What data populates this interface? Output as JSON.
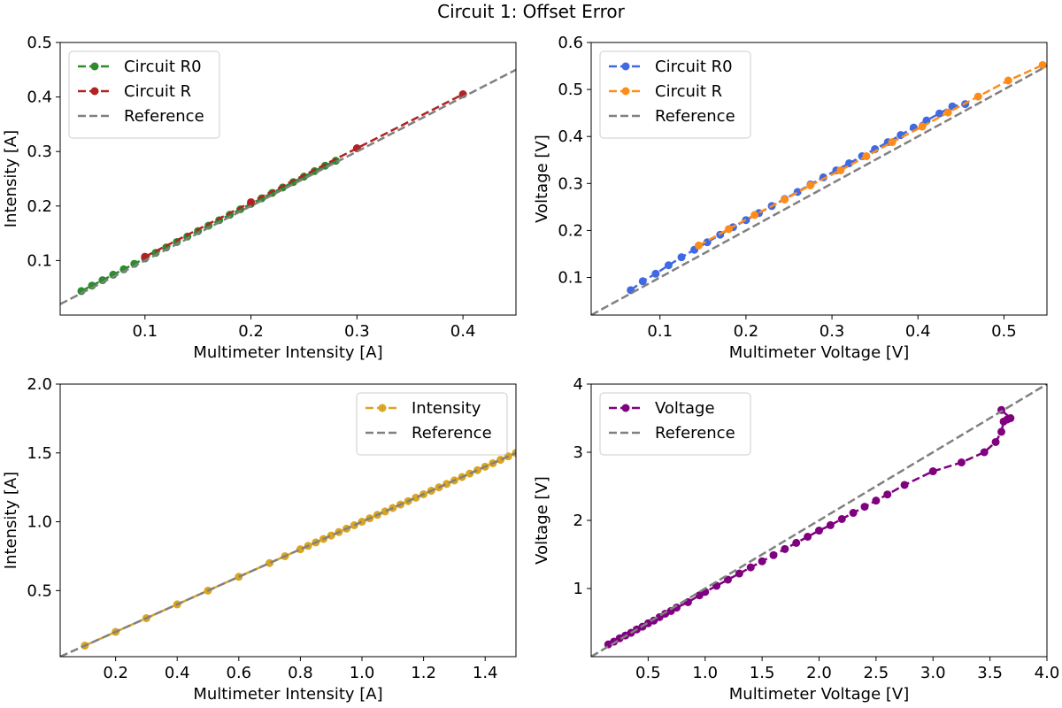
{
  "figure": {
    "title": "Circuit 1: Offset Error"
  },
  "chart_data": [
    {
      "type": "line",
      "xlabel": "Multimeter Intensity [A]",
      "ylabel": "Intensity [A]",
      "xlim": [
        0.02,
        0.45
      ],
      "ylim": [
        0.0,
        0.5
      ],
      "xticks": [
        0.1,
        0.2,
        0.3,
        0.4
      ],
      "xtick_labels": [
        "0.1",
        "0.2",
        "0.3",
        "0.4"
      ],
      "yticks": [
        0.1,
        0.2,
        0.3,
        0.4,
        0.5
      ],
      "ytick_labels": [
        "0.1",
        "0.2",
        "0.3",
        "0.4",
        "0.5"
      ],
      "legend_position": "top-left",
      "series": [
        {
          "name": "Circuit R0",
          "color": "#2e8b2e",
          "style": "dashed-markers",
          "x": [
            0.04,
            0.05,
            0.06,
            0.07,
            0.08,
            0.09,
            0.1,
            0.11,
            0.12,
            0.13,
            0.14,
            0.15,
            0.16,
            0.17,
            0.18,
            0.19,
            0.2,
            0.21,
            0.22,
            0.23,
            0.24,
            0.25,
            0.26,
            0.27,
            0.28
          ],
          "y": [
            0.044,
            0.054,
            0.064,
            0.074,
            0.084,
            0.094,
            0.104,
            0.114,
            0.124,
            0.134,
            0.144,
            0.154,
            0.164,
            0.174,
            0.184,
            0.194,
            0.204,
            0.214,
            0.224,
            0.234,
            0.244,
            0.254,
            0.264,
            0.274,
            0.283
          ]
        },
        {
          "name": "Circuit R",
          "color": "#b22222",
          "style": "dashed-markers",
          "x": [
            0.1,
            0.2,
            0.3,
            0.4
          ],
          "y": [
            0.107,
            0.207,
            0.306,
            0.405
          ]
        },
        {
          "name": "Reference",
          "color": "#808080",
          "style": "dashed",
          "x": [
            0.02,
            0.45
          ],
          "y": [
            0.02,
            0.45
          ]
        }
      ]
    },
    {
      "type": "line",
      "xlabel": "Multimeter Voltage [V]",
      "ylabel": "Voltage [V]",
      "xlim": [
        0.02,
        0.55
      ],
      "ylim": [
        0.02,
        0.6
      ],
      "xticks": [
        0.1,
        0.2,
        0.3,
        0.4,
        0.5
      ],
      "xtick_labels": [
        "0.1",
        "0.2",
        "0.3",
        "0.4",
        "0.5"
      ],
      "yticks": [
        0.1,
        0.2,
        0.3,
        0.4,
        0.5,
        0.6
      ],
      "ytick_labels": [
        "0.1",
        "0.2",
        "0.3",
        "0.4",
        "0.5",
        "0.6"
      ],
      "legend_position": "top-left",
      "series": [
        {
          "name": "Circuit R0",
          "color": "#4169e1",
          "style": "dashed-markers",
          "x": [
            0.066,
            0.08,
            0.095,
            0.11,
            0.125,
            0.14,
            0.155,
            0.17,
            0.185,
            0.2,
            0.215,
            0.23,
            0.245,
            0.26,
            0.275,
            0.29,
            0.305,
            0.32,
            0.335,
            0.35,
            0.365,
            0.38,
            0.395,
            0.41,
            0.425,
            0.44,
            0.455
          ],
          "y": [
            0.073,
            0.092,
            0.108,
            0.126,
            0.143,
            0.159,
            0.175,
            0.191,
            0.207,
            0.222,
            0.237,
            0.252,
            0.267,
            0.282,
            0.298,
            0.313,
            0.328,
            0.343,
            0.358,
            0.373,
            0.388,
            0.403,
            0.419,
            0.434,
            0.449,
            0.464,
            0.469
          ]
        },
        {
          "name": "Circuit R",
          "color": "#ff8c1a",
          "style": "dashed-markers",
          "x": [
            0.145,
            0.18,
            0.21,
            0.245,
            0.275,
            0.31,
            0.34,
            0.37,
            0.405,
            0.435,
            0.47,
            0.505,
            0.545
          ],
          "y": [
            0.168,
            0.203,
            0.233,
            0.266,
            0.296,
            0.328,
            0.358,
            0.388,
            0.421,
            0.451,
            0.485,
            0.519,
            0.552
          ]
        },
        {
          "name": "Reference",
          "color": "#808080",
          "style": "dashed",
          "x": [
            0.02,
            0.55
          ],
          "y": [
            0.02,
            0.55
          ]
        }
      ]
    },
    {
      "type": "line",
      "xlabel": "Multimeter Intensity [A]",
      "ylabel": "Intensity [A]",
      "xlim": [
        0.02,
        1.5
      ],
      "ylim": [
        0.02,
        2.0
      ],
      "xticks": [
        0.2,
        0.4,
        0.6,
        0.8,
        1.0,
        1.2,
        1.4
      ],
      "xtick_labels": [
        "0.2",
        "0.4",
        "0.6",
        "0.8",
        "1.0",
        "1.2",
        "1.4"
      ],
      "yticks": [
        0.5,
        1.0,
        1.5,
        2.0
      ],
      "ytick_labels": [
        "0.5",
        "1.0",
        "1.5",
        "2.0"
      ],
      "legend_position": "top-right",
      "series": [
        {
          "name": "Intensity",
          "color": "#daa520",
          "style": "dashed-markers",
          "x": [
            0.1,
            0.2,
            0.3,
            0.4,
            0.5,
            0.6,
            0.7,
            0.75,
            0.8,
            0.825,
            0.85,
            0.875,
            0.9,
            0.925,
            0.95,
            0.975,
            1.0,
            1.025,
            1.05,
            1.075,
            1.1,
            1.125,
            1.15,
            1.175,
            1.2,
            1.225,
            1.25,
            1.275,
            1.3,
            1.325,
            1.35,
            1.375,
            1.4,
            1.425,
            1.45,
            1.475,
            1.5
          ],
          "y": [
            0.1,
            0.2,
            0.3,
            0.4,
            0.5,
            0.6,
            0.7,
            0.75,
            0.8,
            0.825,
            0.85,
            0.875,
            0.9,
            0.925,
            0.95,
            0.975,
            1.0,
            1.025,
            1.05,
            1.075,
            1.1,
            1.125,
            1.15,
            1.175,
            1.2,
            1.225,
            1.25,
            1.275,
            1.3,
            1.325,
            1.35,
            1.375,
            1.4,
            1.425,
            1.45,
            1.475,
            1.5
          ]
        },
        {
          "name": "Reference",
          "color": "#808080",
          "style": "dashed",
          "x": [
            0.02,
            1.5
          ],
          "y": [
            0.02,
            1.5
          ]
        }
      ]
    },
    {
      "type": "line",
      "xlabel": "Multimeter Voltage [V]",
      "ylabel": "Voltage [V]",
      "xlim": [
        0.0,
        4.0
      ],
      "ylim": [
        0.0,
        4.0
      ],
      "xticks": [
        0.5,
        1.0,
        1.5,
        2.0,
        2.5,
        3.0,
        3.5,
        4.0
      ],
      "xtick_labels": [
        "0.5",
        "1.0",
        "1.5",
        "2.0",
        "2.5",
        "3.0",
        "3.5",
        "4.0"
      ],
      "yticks": [
        1,
        2,
        3,
        4
      ],
      "ytick_labels": [
        "1",
        "2",
        "3",
        "4"
      ],
      "legend_position": "top-left",
      "series": [
        {
          "name": "Voltage",
          "color": "#800080",
          "style": "dashed-markers",
          "x": [
            0.15,
            0.2,
            0.25,
            0.3,
            0.35,
            0.4,
            0.45,
            0.5,
            0.55,
            0.6,
            0.65,
            0.7,
            0.75,
            0.85,
            0.95,
            1.0,
            1.1,
            1.2,
            1.3,
            1.4,
            1.5,
            1.6,
            1.7,
            1.8,
            1.9,
            2.0,
            2.1,
            2.2,
            2.3,
            2.4,
            2.5,
            2.6,
            2.75,
            3.0,
            3.25,
            3.45,
            3.55,
            3.6,
            3.62,
            3.65,
            3.68,
            3.6
          ],
          "y": [
            0.18,
            0.22,
            0.27,
            0.31,
            0.35,
            0.4,
            0.44,
            0.49,
            0.53,
            0.58,
            0.63,
            0.67,
            0.72,
            0.8,
            0.9,
            0.95,
            1.04,
            1.13,
            1.22,
            1.31,
            1.4,
            1.49,
            1.58,
            1.67,
            1.76,
            1.85,
            1.93,
            2.02,
            2.11,
            2.2,
            2.29,
            2.38,
            2.52,
            2.72,
            2.85,
            3.0,
            3.15,
            3.3,
            3.45,
            3.48,
            3.5,
            3.62
          ]
        },
        {
          "name": "Reference",
          "color": "#808080",
          "style": "dashed",
          "x": [
            0.0,
            4.0
          ],
          "y": [
            0.0,
            4.0
          ]
        }
      ]
    }
  ]
}
